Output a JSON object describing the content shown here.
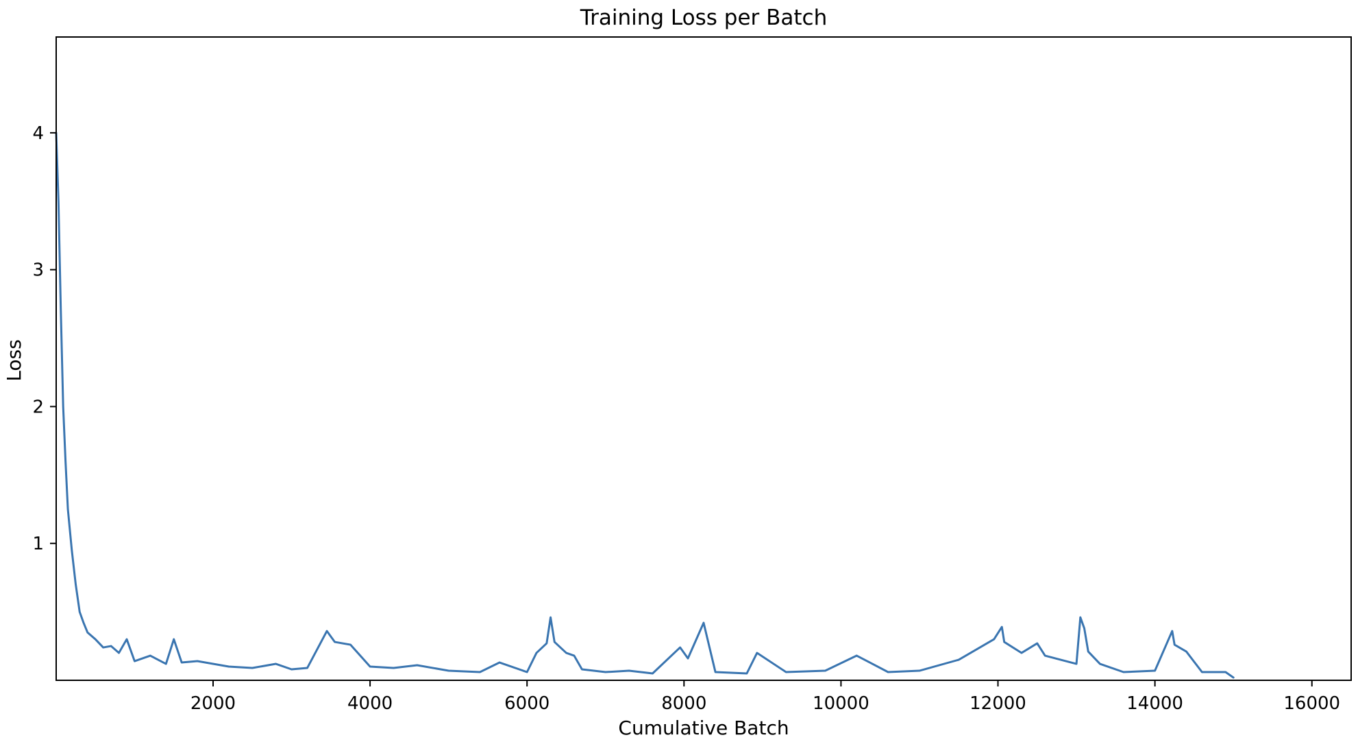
{
  "chart_data": {
    "type": "line",
    "title": "Training Loss per Batch",
    "xlabel": "Cumulative Batch",
    "ylabel": "Loss",
    "xlim": [
      1,
      16500
    ],
    "ylim": [
      0,
      4.7
    ],
    "x_ticks": [
      2000,
      4000,
      6000,
      8000,
      10000,
      12000,
      14000,
      16000
    ],
    "y_ticks": [
      1,
      2,
      3,
      4
    ],
    "grid": false,
    "legend": false,
    "series": [
      {
        "color": "#3a75b0",
        "x": [
          1,
          30,
          60,
          90,
          120,
          150,
          200,
          250,
          300,
          350,
          400,
          500,
          600,
          700,
          800,
          900,
          1000,
          1200,
          1400,
          1500,
          1600,
          1800,
          2000,
          2200,
          2500,
          2800,
          3000,
          3200,
          3450,
          3550,
          3750,
          4000,
          4300,
          4600,
          5000,
          5400,
          5650,
          6000,
          6120,
          6250,
          6300,
          6350,
          6500,
          6600,
          6700,
          7000,
          7300,
          7600,
          7950,
          8050,
          8250,
          8400,
          8800,
          8930,
          9300,
          9800,
          10200,
          10600,
          11000,
          11500,
          11950,
          12050,
          12080,
          12300,
          12500,
          12600,
          13000,
          13050,
          13100,
          13150,
          13300,
          13600,
          14000,
          14220,
          14250,
          14400,
          14600,
          14900,
          15000
        ],
        "y": [
          4.0,
          3.5,
          2.7,
          2.0,
          1.6,
          1.25,
          0.95,
          0.7,
          0.5,
          0.42,
          0.35,
          0.3,
          0.24,
          0.25,
          0.2,
          0.3,
          0.14,
          0.18,
          0.12,
          0.3,
          0.13,
          0.14,
          0.12,
          0.1,
          0.09,
          0.12,
          0.08,
          0.09,
          0.36,
          0.28,
          0.26,
          0.1,
          0.09,
          0.11,
          0.07,
          0.06,
          0.13,
          0.06,
          0.2,
          0.27,
          0.46,
          0.28,
          0.2,
          0.18,
          0.08,
          0.06,
          0.07,
          0.05,
          0.24,
          0.16,
          0.42,
          0.06,
          0.05,
          0.2,
          0.06,
          0.07,
          0.18,
          0.06,
          0.07,
          0.15,
          0.3,
          0.39,
          0.28,
          0.2,
          0.27,
          0.18,
          0.12,
          0.46,
          0.38,
          0.21,
          0.12,
          0.06,
          0.07,
          0.36,
          0.26,
          0.21,
          0.06,
          0.06,
          0.02
        ]
      }
    ]
  }
}
